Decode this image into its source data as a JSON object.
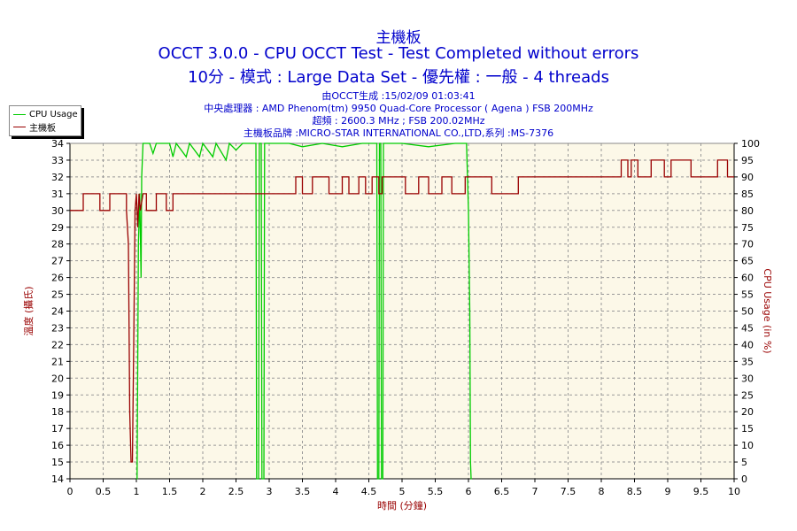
{
  "titles": {
    "main": "主機板",
    "line2": "OCCT 3.0.0 - CPU OCCT Test - Test Completed without errors",
    "line3": "10分 - 模式 : Large Data Set - 優先權 : 一般 - 4 threads"
  },
  "info": {
    "generated": "由OCCT生成 :15/02/09 01:03:41",
    "cpu": "中央處理器 : AMD Phenom(tm) 9950 Quad-Core Processor ( Agena ) FSB 200MHz",
    "clock": "超頻 : 2600.3 MHz ; FSB 200.02MHz",
    "board": "主機板品牌 :MICRO-STAR INTERNATIONAL CO.,LTD,系列 :MS-7376"
  },
  "chart_data": {
    "type": "line",
    "xlabel": "時間 (分鐘)",
    "ylabel_left": "溫度 (攝氏)",
    "ylabel_right": "CPU Usage (in %)",
    "xlim": [
      0,
      10
    ],
    "ylim_left": [
      14,
      34
    ],
    "ylim_right": [
      0,
      100
    ],
    "x_ticks": [
      "0",
      "0.5",
      "1",
      "1.5",
      "2",
      "2.5",
      "3",
      "3.5",
      "4",
      "4.5",
      "5",
      "5.5",
      "6",
      "6.5",
      "7",
      "7.5",
      "8",
      "8.5",
      "9",
      "9.5",
      "10"
    ],
    "y_left_ticks": [
      "14",
      "15",
      "16",
      "17",
      "18",
      "19",
      "20",
      "21",
      "22",
      "23",
      "24",
      "25",
      "26",
      "27",
      "28",
      "29",
      "30",
      "31",
      "32",
      "33",
      "34"
    ],
    "y_right_ticks": [
      "0",
      "5",
      "10",
      "15",
      "20",
      "25",
      "30",
      "35",
      "40",
      "45",
      "50",
      "55",
      "60",
      "65",
      "70",
      "75",
      "80",
      "85",
      "90",
      "95",
      "100"
    ],
    "grid": true,
    "legend_position": "top-left",
    "series": [
      {
        "name": "CPU Usage",
        "axis": "right",
        "color": "#00cc00",
        "points": [
          [
            1.0,
            0
          ],
          [
            1.01,
            0
          ],
          [
            1.03,
            70
          ],
          [
            1.05,
            85
          ],
          [
            1.07,
            60
          ],
          [
            1.08,
            90
          ],
          [
            1.1,
            100
          ],
          [
            1.2,
            100
          ],
          [
            1.25,
            97
          ],
          [
            1.3,
            100
          ],
          [
            1.5,
            100
          ],
          [
            1.55,
            96
          ],
          [
            1.6,
            100
          ],
          [
            1.75,
            96
          ],
          [
            1.8,
            100
          ],
          [
            1.95,
            96
          ],
          [
            2.0,
            100
          ],
          [
            2.15,
            96
          ],
          [
            2.2,
            100
          ],
          [
            2.35,
            95
          ],
          [
            2.4,
            100
          ],
          [
            2.5,
            98
          ],
          [
            2.6,
            100
          ],
          [
            2.8,
            100
          ],
          [
            2.81,
            0
          ],
          [
            2.84,
            0
          ],
          [
            2.85,
            100
          ],
          [
            2.88,
            100
          ],
          [
            2.89,
            0
          ],
          [
            2.92,
            0
          ],
          [
            2.93,
            100
          ],
          [
            3.0,
            100
          ],
          [
            3.3,
            100
          ],
          [
            3.5,
            99
          ],
          [
            3.8,
            100
          ],
          [
            4.1,
            99
          ],
          [
            4.4,
            100
          ],
          [
            4.62,
            100
          ],
          [
            4.63,
            0
          ],
          [
            4.65,
            0
          ],
          [
            4.66,
            100
          ],
          [
            4.68,
            100
          ],
          [
            4.69,
            0
          ],
          [
            4.71,
            0
          ],
          [
            4.72,
            100
          ],
          [
            5.0,
            100
          ],
          [
            5.4,
            99
          ],
          [
            5.8,
            100
          ],
          [
            5.97,
            100
          ],
          [
            6.0,
            80
          ],
          [
            6.02,
            50
          ],
          [
            6.03,
            5
          ],
          [
            6.04,
            0
          ],
          [
            6.05,
            0
          ]
        ]
      },
      {
        "name": "主機板",
        "axis": "left",
        "color": "#990000",
        "points": [
          [
            0.0,
            30
          ],
          [
            0.2,
            30
          ],
          [
            0.2,
            31
          ],
          [
            0.45,
            31
          ],
          [
            0.45,
            30
          ],
          [
            0.6,
            30
          ],
          [
            0.6,
            31
          ],
          [
            0.85,
            31
          ],
          [
            0.85,
            30
          ],
          [
            0.88,
            28
          ],
          [
            0.9,
            18
          ],
          [
            0.92,
            15
          ],
          [
            0.94,
            15
          ],
          [
            0.96,
            22
          ],
          [
            0.98,
            30
          ],
          [
            1.0,
            31
          ],
          [
            1.02,
            29
          ],
          [
            1.04,
            31
          ],
          [
            1.06,
            30
          ],
          [
            1.1,
            31
          ],
          [
            1.15,
            31
          ],
          [
            1.15,
            30
          ],
          [
            1.3,
            30
          ],
          [
            1.3,
            31
          ],
          [
            1.45,
            31
          ],
          [
            1.45,
            30
          ],
          [
            1.55,
            30
          ],
          [
            1.55,
            31
          ],
          [
            3.4,
            31
          ],
          [
            3.4,
            32
          ],
          [
            3.5,
            32
          ],
          [
            3.5,
            31
          ],
          [
            3.65,
            31
          ],
          [
            3.65,
            32
          ],
          [
            3.9,
            32
          ],
          [
            3.9,
            31
          ],
          [
            4.1,
            31
          ],
          [
            4.1,
            32
          ],
          [
            4.2,
            32
          ],
          [
            4.2,
            31
          ],
          [
            4.35,
            31
          ],
          [
            4.35,
            32
          ],
          [
            4.45,
            32
          ],
          [
            4.45,
            31
          ],
          [
            4.55,
            31
          ],
          [
            4.55,
            32
          ],
          [
            4.65,
            32
          ],
          [
            4.65,
            31
          ],
          [
            4.7,
            31
          ],
          [
            4.7,
            32
          ],
          [
            5.05,
            32
          ],
          [
            5.05,
            31
          ],
          [
            5.25,
            31
          ],
          [
            5.25,
            32
          ],
          [
            5.4,
            32
          ],
          [
            5.4,
            31
          ],
          [
            5.6,
            31
          ],
          [
            5.6,
            32
          ],
          [
            5.75,
            32
          ],
          [
            5.75,
            31
          ],
          [
            5.95,
            31
          ],
          [
            5.95,
            32
          ],
          [
            6.35,
            32
          ],
          [
            6.35,
            31
          ],
          [
            6.75,
            31
          ],
          [
            6.75,
            32
          ],
          [
            8.3,
            32
          ],
          [
            8.3,
            33
          ],
          [
            8.4,
            33
          ],
          [
            8.4,
            32
          ],
          [
            8.45,
            32
          ],
          [
            8.45,
            33
          ],
          [
            8.55,
            33
          ],
          [
            8.55,
            32
          ],
          [
            8.75,
            32
          ],
          [
            8.75,
            33
          ],
          [
            8.95,
            33
          ],
          [
            8.95,
            32
          ],
          [
            9.05,
            32
          ],
          [
            9.05,
            33
          ],
          [
            9.35,
            33
          ],
          [
            9.35,
            32
          ],
          [
            9.75,
            32
          ],
          [
            9.75,
            33
          ],
          [
            9.9,
            33
          ],
          [
            9.9,
            32
          ],
          [
            10.0,
            32
          ]
        ]
      }
    ]
  }
}
